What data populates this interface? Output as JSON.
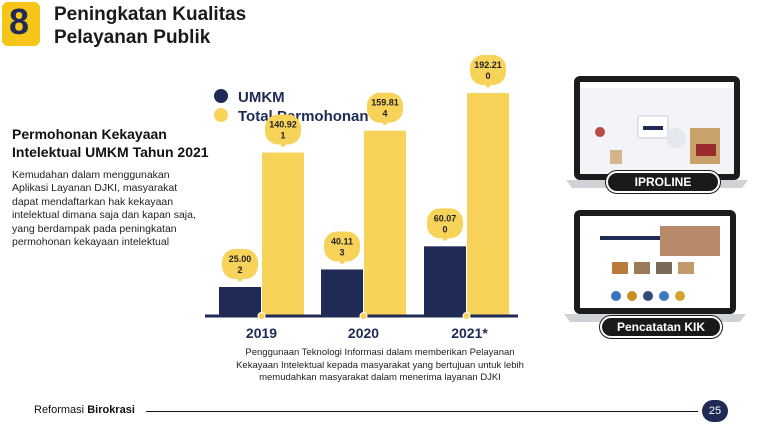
{
  "header": {
    "number": "8",
    "title_line1": "Peningkatan Kualitas",
    "title_line2": "Pelayanan Publik"
  },
  "colors": {
    "umkm": "#1f2a55",
    "total": "#f8d35a",
    "badge": "#f5c518"
  },
  "legend": {
    "umkm": "UMKM",
    "total": "Total Permohonan"
  },
  "left": {
    "subtitle_line1": "Permohonan Kekayaan",
    "subtitle_line2": "Intelektual UMKM Tahun 2021",
    "paragraph": [
      "Kemudahan dalam menggunakan",
      "Aplikasi Layanan DJKI, masyarakat",
      "dapat mendaftarkan hak kekayaan",
      "intelektual dimana saja dan kapan saja,",
      "yang berdampak pada peningkatan",
      "permohonan kekayaan intelektual"
    ]
  },
  "chart_data": {
    "type": "bar",
    "categories": [
      "2019",
      "2020",
      "2021*"
    ],
    "series": [
      {
        "name": "UMKM",
        "values": [
          25002,
          40113,
          60070
        ],
        "labels": [
          [
            "25.00",
            "2"
          ],
          [
            "40.11",
            "3"
          ],
          [
            "60.07",
            "0"
          ]
        ]
      },
      {
        "name": "Total Permohonan",
        "values": [
          140921,
          159814,
          192210
        ],
        "labels": [
          [
            "140.92",
            "1"
          ],
          [
            "159.81",
            "4"
          ],
          [
            "192.21",
            "0"
          ]
        ]
      }
    ],
    "ylim": [
      0,
      200000
    ]
  },
  "caption": [
    "Penggunaan Teknologi Informasi dalam memberikan Pelayanan",
    "Kekayaan Intelektual kepada masyarakat yang bertujuan untuk lebih",
    "memudahkan masyarakat dalam menerima layanan DJKI"
  ],
  "devices": {
    "top_label": "IPROLINE",
    "bottom_label": "Pencatatan KIK"
  },
  "footer": {
    "prefix": "Reformasi ",
    "bold": "Birokrasi",
    "page": "25"
  }
}
